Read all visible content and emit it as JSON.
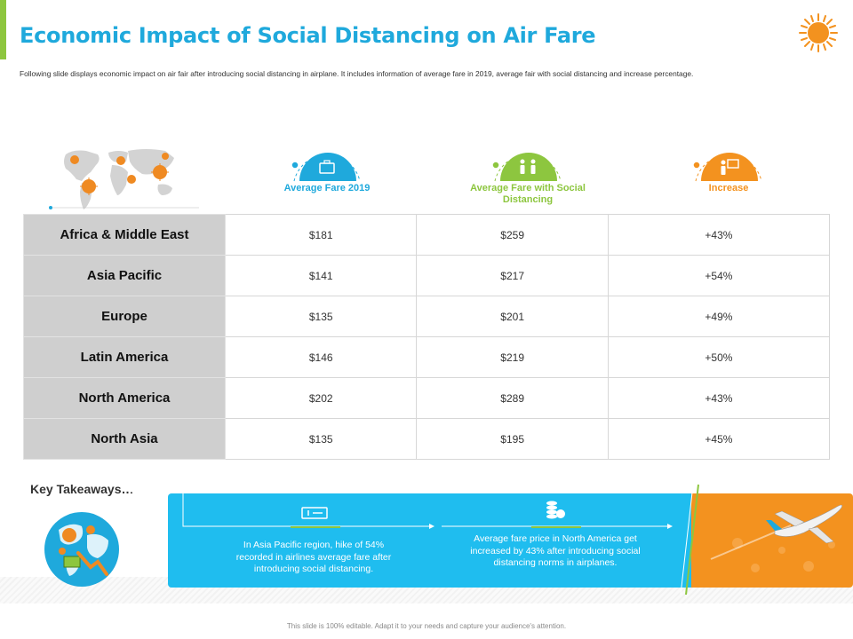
{
  "title": "Economic Impact of Social Distancing on Air Fare",
  "subtitle": "Following slide displays economic impact on air fair after introducing social distancing in airplane. It includes information of average fare in 2019, average fair with social distancing and increase percentage.",
  "columns": [
    {
      "label": "Average Fare 2019",
      "color": "#1fa9dc",
      "icon": "briefcase-icon"
    },
    {
      "label": "Average Fare with Social Distancing",
      "color": "#8dc63f",
      "icon": "people-icon"
    },
    {
      "label": "Increase",
      "color": "#f3921f",
      "icon": "presenter-icon"
    }
  ],
  "rows": [
    {
      "region": "Africa & Middle East",
      "fare2019": "$181",
      "fare_sd": "$259",
      "increase": "+43%"
    },
    {
      "region": "Asia Pacific",
      "fare2019": "$141",
      "fare_sd": "$217",
      "increase": "+54%"
    },
    {
      "region": "Europe",
      "fare2019": "$135",
      "fare_sd": "$201",
      "increase": "+49%"
    },
    {
      "region": "Latin America",
      "fare2019": "$146",
      "fare_sd": "$219",
      "increase": "+50%"
    },
    {
      "region": "North America",
      "fare2019": "$202",
      "fare_sd": "$289",
      "increase": "+43%"
    },
    {
      "region": "North Asia",
      "fare2019": "$135",
      "fare_sd": "$195",
      "increase": "+45%"
    }
  ],
  "takeaways": {
    "label": "Key Takeaways…",
    "items": [
      {
        "text": "In Asia Pacific region, hike of 54% recorded in airlines average fare after introducing social distancing.",
        "icon": "ticket-icon"
      },
      {
        "text": "Average fare price in North America get increased by 43% after introducing social distancing norms in airplanes.",
        "icon": "coins-icon"
      }
    ]
  },
  "colors": {
    "title": "#1fa9dc",
    "accent_green": "#8dc63f",
    "panel_blue": "#1fbdef",
    "panel_orange": "#f3921f",
    "virus_orange": "#ef8a22"
  },
  "footer": "This slide is 100% editable. Adapt it to your needs and capture your audience's attention."
}
